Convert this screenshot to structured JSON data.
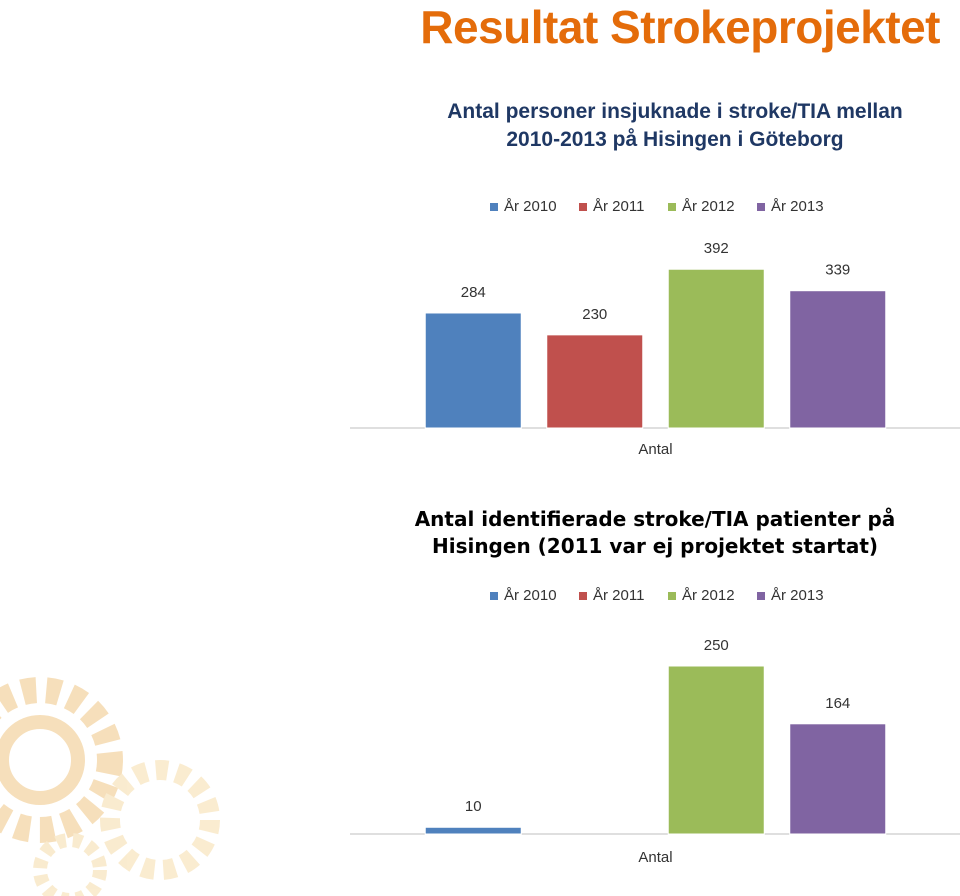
{
  "header": {
    "title": "Resultat Strokeprojektet"
  },
  "chart_data": [
    {
      "type": "bar",
      "title": "Antal personer insjuknade i stroke/TIA mellan 2010-2013 på Hisingen i Göteborg",
      "categories": [
        "Antal"
      ],
      "ylim": [
        0,
        400
      ],
      "legend": "top",
      "series": [
        {
          "name": "År 2010",
          "color": "#4f81bd",
          "values": [
            284
          ]
        },
        {
          "name": "År 2011",
          "color": "#c0504d",
          "values": [
            230
          ]
        },
        {
          "name": "År 2012",
          "color": "#9bbb59",
          "values": [
            392
          ]
        },
        {
          "name": "År 2013",
          "color": "#8064a2",
          "values": [
            339
          ]
        }
      ]
    },
    {
      "type": "bar",
      "title": "Antal identifierade stroke/TIA patienter på Hisingen (2011 var ej projektet startat)",
      "categories": [
        "Antal"
      ],
      "ylim": [
        0,
        250
      ],
      "legend": "top",
      "series": [
        {
          "name": "År 2010",
          "color": "#4f81bd",
          "values": [
            10
          ]
        },
        {
          "name": "År 2011",
          "color": "#c0504d",
          "values": [
            null
          ]
        },
        {
          "name": "År 2012",
          "color": "#9bbb59",
          "values": [
            250
          ]
        },
        {
          "name": "År 2013",
          "color": "#8064a2",
          "values": [
            164
          ]
        }
      ]
    }
  ]
}
